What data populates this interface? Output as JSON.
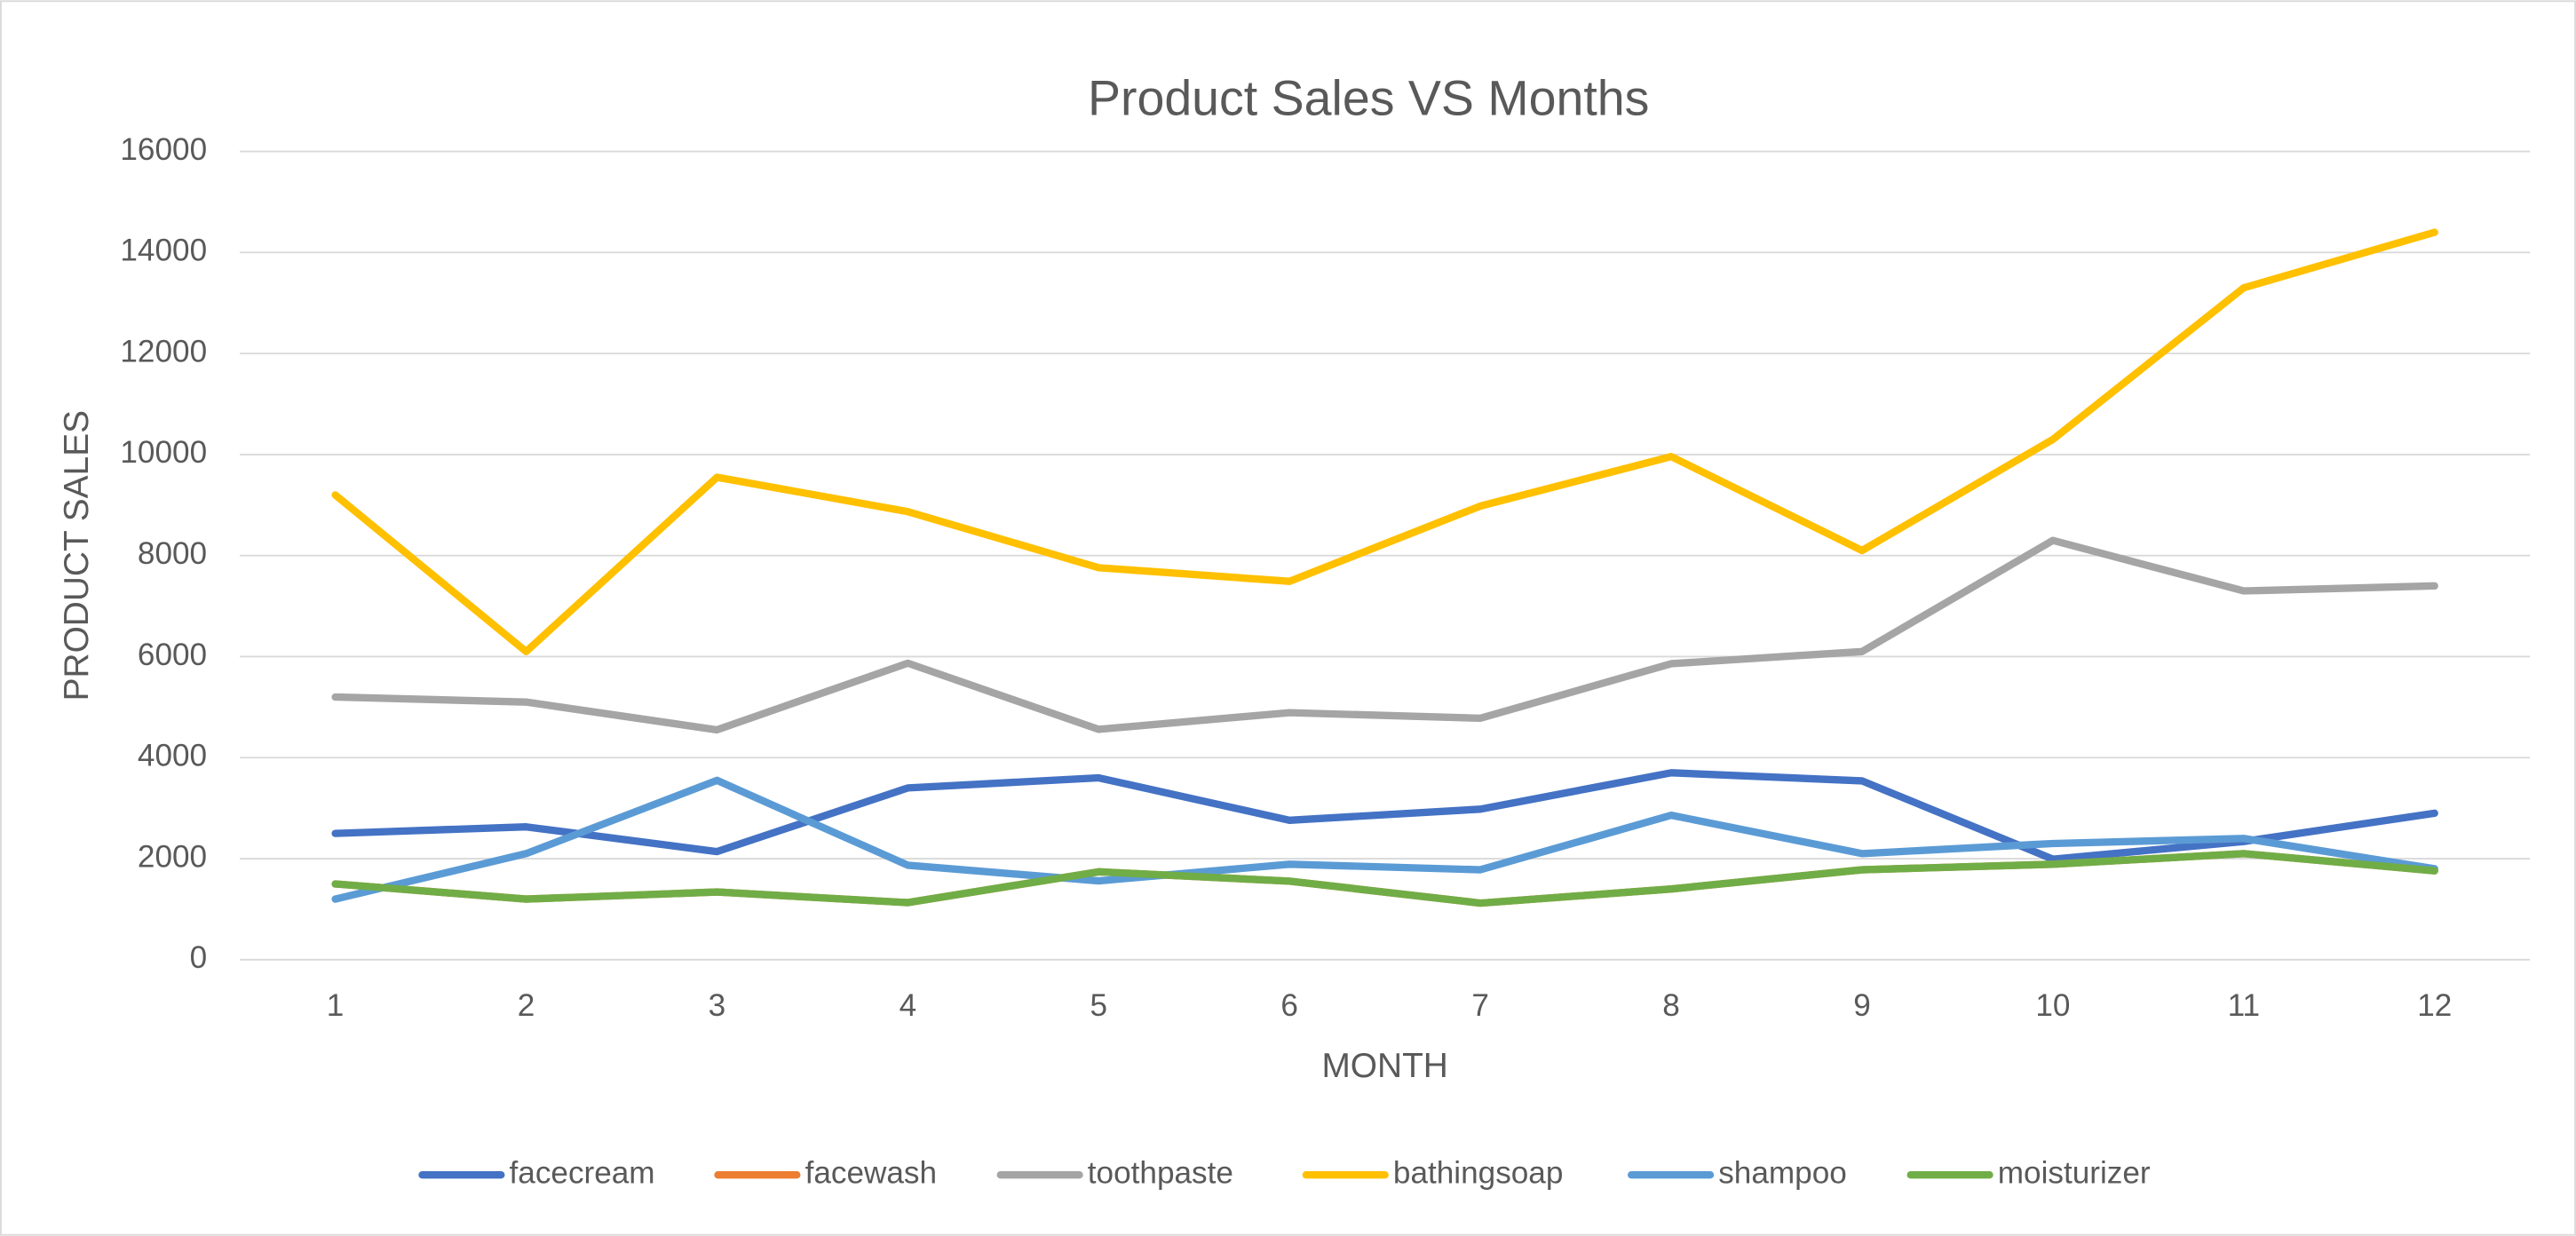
{
  "chart_data": {
    "type": "line",
    "title": "Product Sales VS Months",
    "x_label": "MONTH",
    "y_label": "PRODUCT SALES",
    "categories": [
      1,
      2,
      3,
      4,
      5,
      6,
      7,
      8,
      9,
      10,
      11,
      12
    ],
    "series": [
      {
        "name": "facecream",
        "color": "#4472c4",
        "values": [
          2500,
          2630,
          2140,
          3400,
          3600,
          2760,
          2980,
          3700,
          3540,
          1990,
          2340,
          2900
        ]
      },
      {
        "name": "facewash",
        "color": "#ed7d31",
        "values": [
          1500,
          1200,
          1340,
          1130,
          1740,
          1555,
          1120,
          1400,
          1780,
          1890,
          2100,
          1760
        ]
      },
      {
        "name": "toothpaste",
        "color": "#a5a5a5",
        "values": [
          5200,
          5100,
          4550,
          5870,
          4560,
          4890,
          4780,
          5860,
          6100,
          8300,
          7300,
          7400
        ]
      },
      {
        "name": "bathingsoap",
        "color": "#ffc000",
        "values": [
          9200,
          6100,
          9550,
          8870,
          7760,
          7490,
          8980,
          9960,
          8100,
          10300,
          13300,
          14400
        ]
      },
      {
        "name": "shampoo",
        "color": "#5b9bd5",
        "values": [
          1200,
          2100,
          3550,
          1870,
          1560,
          1890,
          1780,
          2860,
          2100,
          2300,
          2400,
          1800
        ]
      },
      {
        "name": "moisturizer",
        "color": "#70ad47",
        "values": [
          1500,
          1200,
          1340,
          1130,
          1740,
          1555,
          1120,
          1400,
          1780,
          1890,
          2100,
          1760
        ]
      }
    ],
    "ylim": [
      0,
      16000
    ],
    "yticks": [
      0,
      2000,
      4000,
      6000,
      8000,
      10000,
      12000,
      14000,
      16000
    ],
    "grid": true,
    "legend": "bottom"
  }
}
